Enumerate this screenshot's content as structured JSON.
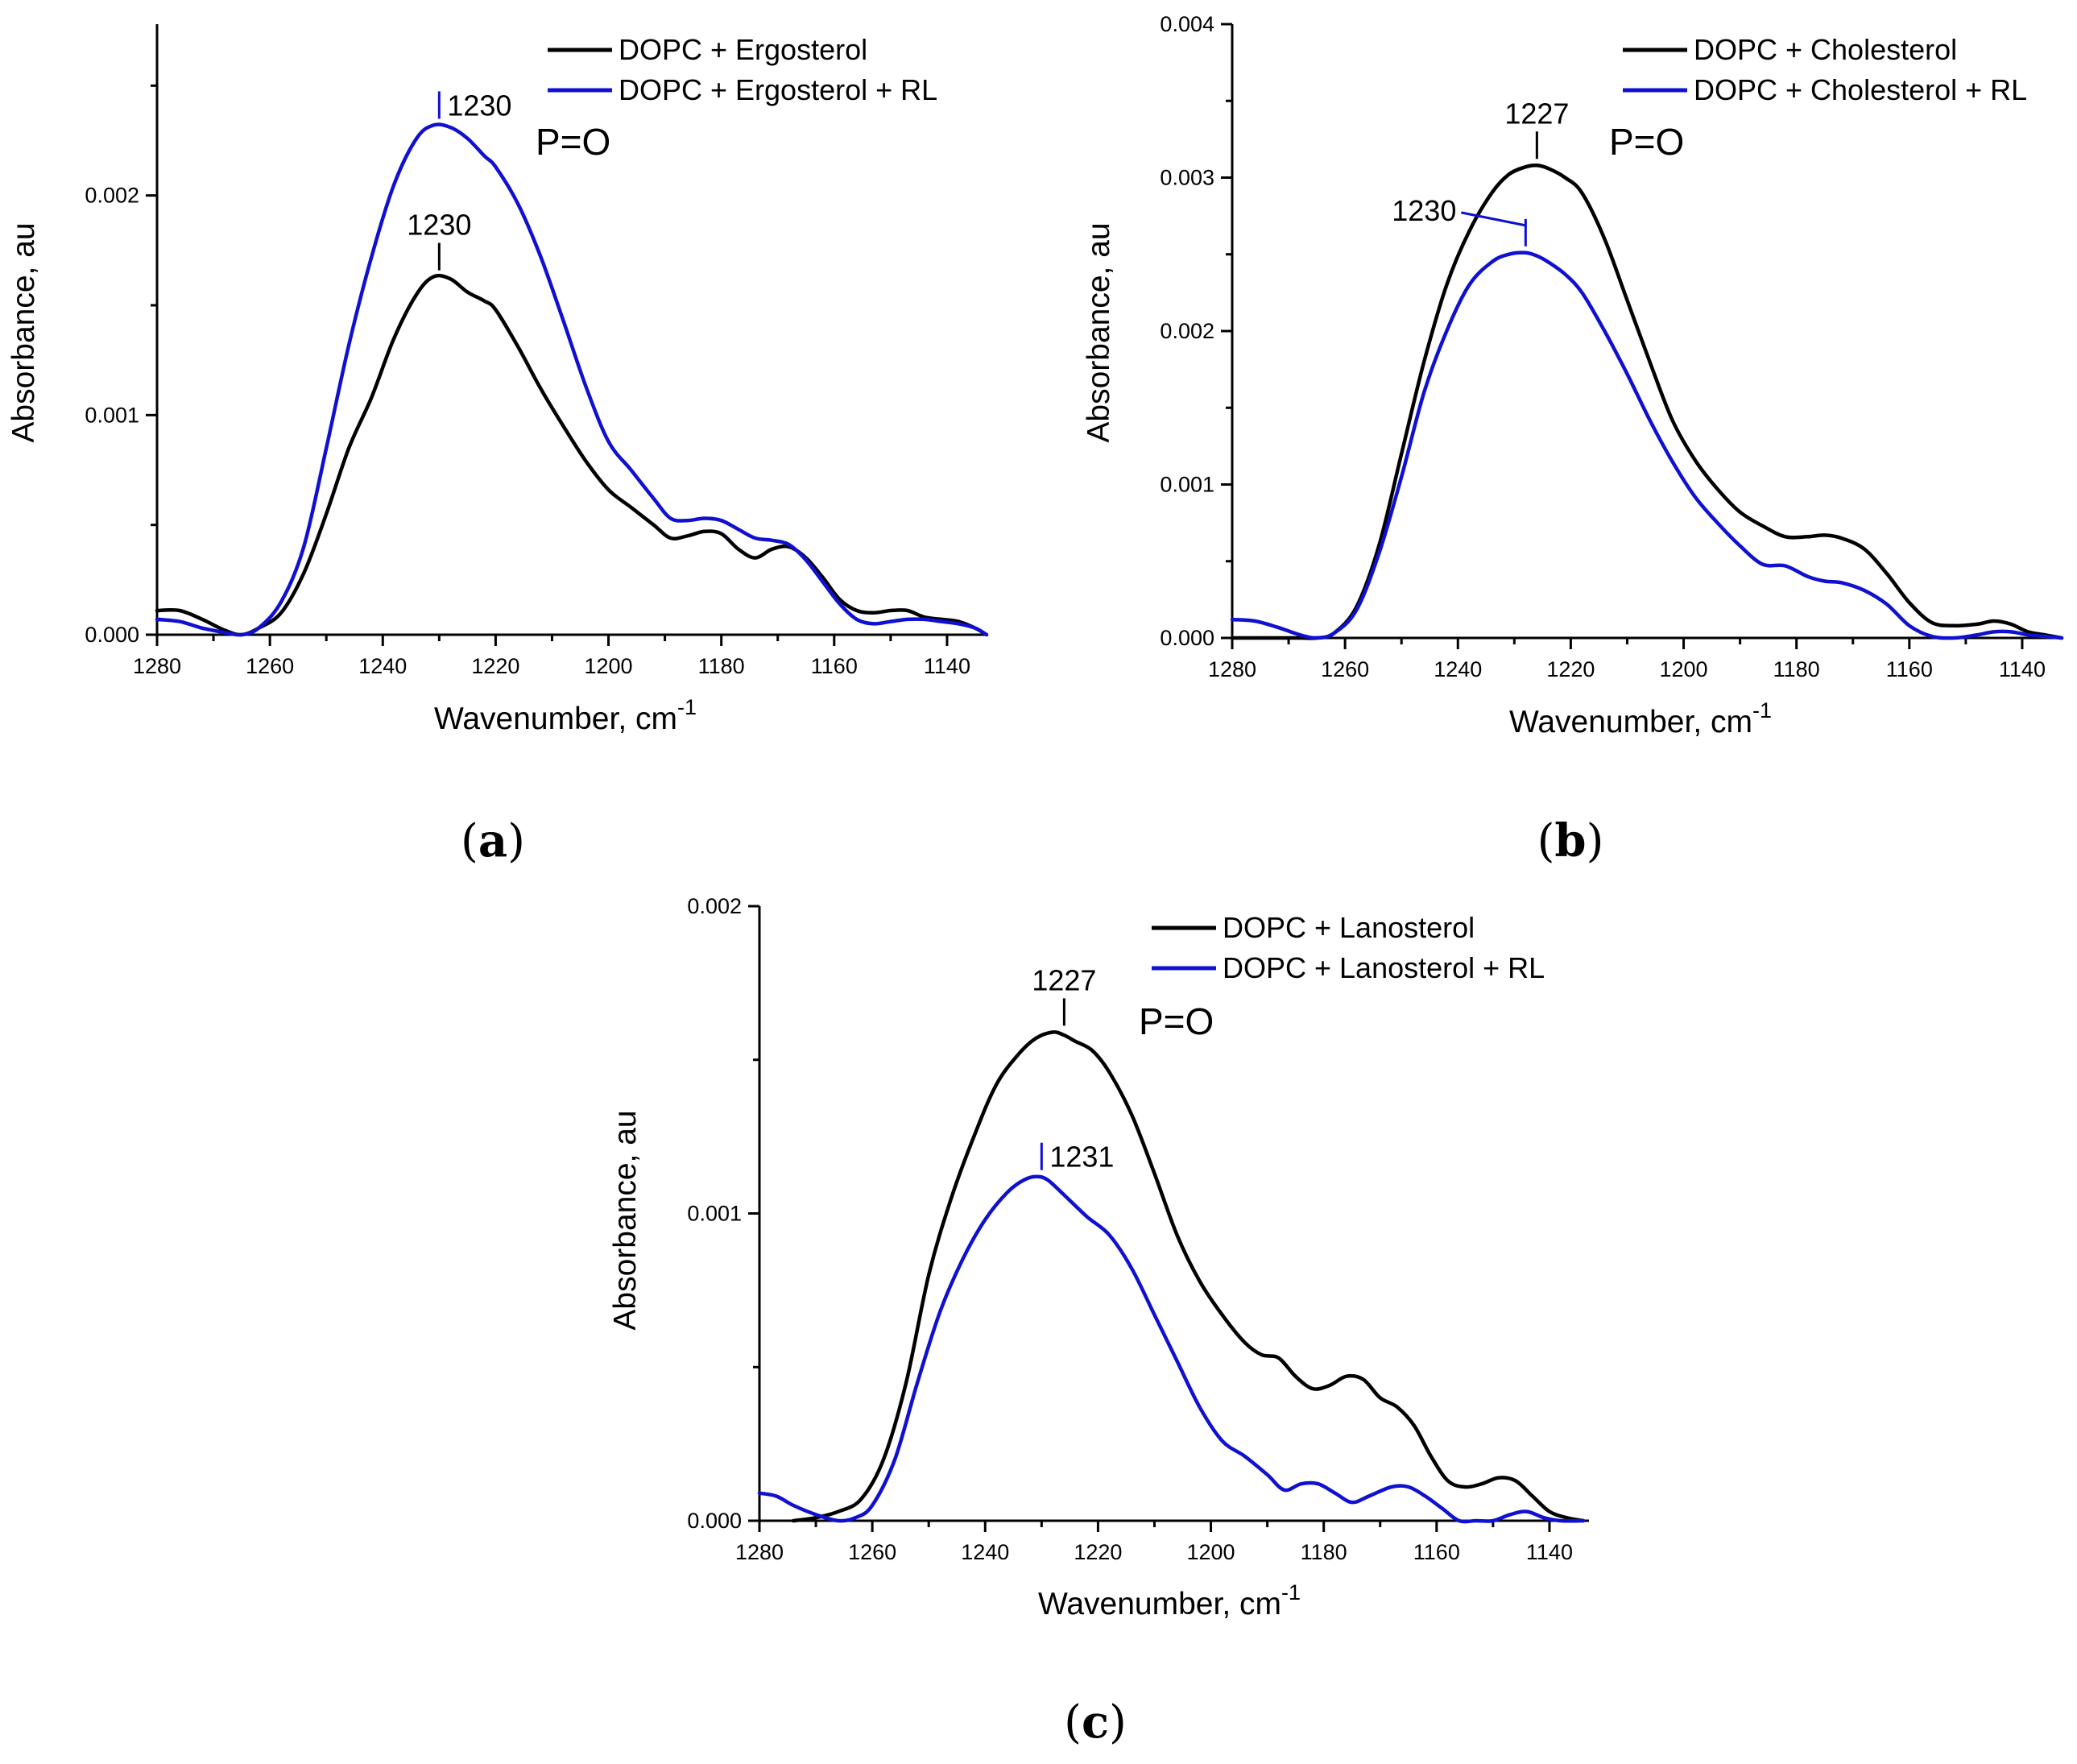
{
  "colors": {
    "black_series": "#000000",
    "blue_series": "#1010d0"
  },
  "chart_data": [
    {
      "type": "line",
      "panel_label": "a",
      "xlabel": "Wavenumber, cm",
      "xlabel_sup": "-1",
      "ylabel": "Absorbance, au",
      "xlim": [
        1280,
        1133
      ],
      "ylim": [
        0,
        0.00278
      ],
      "x_ticks": [
        1280,
        1260,
        1240,
        1220,
        1200,
        1180,
        1160,
        1140
      ],
      "x_tick_labels": [
        "1280",
        "1260",
        "1240",
        "1220",
        "1200",
        "1180",
        "1160",
        "1140"
      ],
      "y_ticks": [
        0,
        0.001,
        0.002
      ],
      "y_tick_labels": [
        "0.000",
        "0.001",
        "0.002"
      ],
      "y_minor_ticks": [
        0.0005,
        0.0015,
        0.0025
      ],
      "group_label": "P=O",
      "series": [
        {
          "name": "DOPC + Ergosterol",
          "color": "#000000",
          "x": [
            1280,
            1276,
            1272,
            1268,
            1265,
            1262,
            1258,
            1254,
            1250,
            1246,
            1242,
            1238,
            1234,
            1231,
            1228,
            1225,
            1222,
            1220,
            1216,
            1212,
            1208,
            1204,
            1200,
            1196,
            1192,
            1189,
            1186,
            1183,
            1180,
            1177,
            1174,
            1171,
            1168,
            1165,
            1162,
            1159,
            1156,
            1153,
            1150,
            1147,
            1144,
            1141,
            1138,
            1135,
            1133
          ],
          "y": [
            0.00011,
            0.00011,
            7e-05,
            2e-05,
            0.0,
            3e-05,
            0.0001,
            0.00028,
            0.00055,
            0.00085,
            0.00108,
            0.00135,
            0.00155,
            0.00163,
            0.00162,
            0.00156,
            0.00152,
            0.00148,
            0.00131,
            0.00112,
            0.00095,
            0.00079,
            0.00066,
            0.00058,
            0.0005,
            0.00044,
            0.00045,
            0.00047,
            0.00046,
            0.00039,
            0.00035,
            0.00039,
            0.0004,
            0.00035,
            0.00026,
            0.00016,
            0.00011,
            0.0001,
            0.00011,
            0.00011,
            8e-05,
            7e-05,
            6e-05,
            3e-05,
            0.0
          ],
          "annotation": "1230",
          "annotation_x": 1230
        },
        {
          "name": "DOPC + Ergosterol + RL",
          "color": "#1010d0",
          "x": [
            1280,
            1276,
            1272,
            1268,
            1265,
            1262,
            1258,
            1254,
            1250,
            1246,
            1242,
            1238,
            1234,
            1231,
            1228,
            1225,
            1222,
            1220,
            1216,
            1212,
            1208,
            1204,
            1200,
            1196,
            1192,
            1189,
            1186,
            1183,
            1180,
            1177,
            1174,
            1171,
            1168,
            1165,
            1162,
            1159,
            1156,
            1153,
            1150,
            1147,
            1144,
            1141,
            1138,
            1135,
            1133
          ],
          "y": [
            7e-05,
            6e-05,
            3e-05,
            1e-05,
            0.0,
            3e-05,
            0.00015,
            0.0004,
            0.00085,
            0.00132,
            0.00172,
            0.00205,
            0.00226,
            0.00232,
            0.00231,
            0.00226,
            0.00218,
            0.00213,
            0.00196,
            0.00172,
            0.00143,
            0.00113,
            0.00088,
            0.00075,
            0.00062,
            0.00053,
            0.00052,
            0.00053,
            0.00052,
            0.00048,
            0.00044,
            0.00043,
            0.00041,
            0.00034,
            0.00024,
            0.00014,
            7e-05,
            5e-05,
            6e-05,
            7e-05,
            7e-05,
            6e-05,
            5e-05,
            3e-05,
            0.0
          ],
          "annotation": "1230",
          "annotation_x": 1230
        }
      ]
    },
    {
      "type": "line",
      "panel_label": "b",
      "xlabel": "Wavenumber, cm",
      "xlabel_sup": "-1",
      "ylabel": "Absorbance, au",
      "xlim": [
        1280,
        1133
      ],
      "ylim": [
        0,
        0.004
      ],
      "x_ticks": [
        1280,
        1260,
        1240,
        1220,
        1200,
        1180,
        1160,
        1140
      ],
      "x_tick_labels": [
        "1280",
        "1260",
        "1240",
        "1220",
        "1200",
        "1180",
        "1160",
        "1140"
      ],
      "y_ticks": [
        0,
        0.001,
        0.002,
        0.003,
        0.004
      ],
      "y_tick_labels": [
        "0.000",
        "0.001",
        "0.002",
        "0.003",
        "0.004"
      ],
      "y_minor_ticks": [
        0.0005,
        0.0015,
        0.0025,
        0.0035
      ],
      "group_label": "P=O",
      "series": [
        {
          "name": "DOPC + Cholesterol",
          "color": "#000000",
          "x": [
            1280,
            1276,
            1272,
            1268,
            1265,
            1262,
            1258,
            1254,
            1250,
            1246,
            1242,
            1238,
            1234,
            1231,
            1228,
            1226,
            1224,
            1221,
            1218,
            1214,
            1210,
            1206,
            1202,
            1198,
            1194,
            1190,
            1186,
            1182,
            1178,
            1175,
            1172,
            1168,
            1164,
            1160,
            1156,
            1152,
            1148,
            1145,
            1142,
            1139,
            1136,
            1133
          ],
          "y": [
            0.0,
            0.0,
            0.0,
            0.0,
            0.0,
            3e-05,
            0.0002,
            0.0006,
            0.0012,
            0.0018,
            0.0023,
            0.00265,
            0.0029,
            0.00302,
            0.00307,
            0.00308,
            0.00306,
            0.003,
            0.0029,
            0.0026,
            0.0022,
            0.0018,
            0.00142,
            0.00116,
            0.00097,
            0.00082,
            0.00073,
            0.00066,
            0.00066,
            0.00067,
            0.00065,
            0.00058,
            0.00042,
            0.00023,
            0.0001,
            8e-05,
            9e-05,
            0.00011,
            9e-05,
            4e-05,
            2e-05,
            0.0
          ],
          "annotation": "1227",
          "annotation_x": 1226
        },
        {
          "name": "DOPC + Cholesterol + RL",
          "color": "#1010d0",
          "x": [
            1280,
            1276,
            1272,
            1268,
            1265,
            1262,
            1258,
            1254,
            1250,
            1246,
            1242,
            1238,
            1234,
            1231,
            1228,
            1226,
            1224,
            1221,
            1218,
            1214,
            1210,
            1206,
            1202,
            1198,
            1194,
            1190,
            1186,
            1182,
            1178,
            1175,
            1172,
            1168,
            1164,
            1160,
            1156,
            1152,
            1148,
            1145,
            1142,
            1139,
            1136,
            1133
          ],
          "y": [
            0.00012,
            0.00011,
            7e-05,
            2e-05,
            0.0,
            3e-05,
            0.00018,
            0.00055,
            0.00105,
            0.0016,
            0.002,
            0.0023,
            0.00245,
            0.0025,
            0.00251,
            0.00249,
            0.00245,
            0.00237,
            0.00225,
            0.002,
            0.00172,
            0.00142,
            0.00115,
            0.00092,
            0.00075,
            0.0006,
            0.00048,
            0.00047,
            0.0004,
            0.00037,
            0.00036,
            0.00031,
            0.00022,
            8e-05,
            1e-05,
            0.0,
            2e-05,
            4e-05,
            4e-05,
            2e-05,
            1e-05,
            0.0
          ],
          "annotation": "1230",
          "annotation_x": 1228
        }
      ]
    },
    {
      "type": "line",
      "panel_label": "c",
      "xlabel": "Wavenumber, cm",
      "xlabel_sup": "-1",
      "ylabel": "Absorbance, au",
      "xlim": [
        1280,
        1133
      ],
      "ylim": [
        0,
        0.002
      ],
      "x_ticks": [
        1280,
        1260,
        1240,
        1220,
        1200,
        1180,
        1160,
        1140
      ],
      "x_tick_labels": [
        "1280",
        "1260",
        "1240",
        "1220",
        "1200",
        "1180",
        "1160",
        "1140"
      ],
      "y_ticks": [
        0,
        0.001,
        0.002
      ],
      "y_tick_labels": [
        "0.000",
        "0.001",
        "0.002"
      ],
      "y_minor_ticks": [
        0.0005,
        0.0015
      ],
      "group_label": "P=O",
      "series": [
        {
          "name": "DOPC + Lanosterol",
          "color": "#000000",
          "x": [
            1274,
            1270,
            1266,
            1262,
            1258,
            1254,
            1250,
            1246,
            1242,
            1238,
            1234,
            1231,
            1228,
            1226,
            1224,
            1221,
            1218,
            1214,
            1210,
            1206,
            1202,
            1198,
            1194,
            1191,
            1188,
            1185,
            1182,
            1179,
            1176,
            1173,
            1170,
            1167,
            1164,
            1161,
            1158,
            1155,
            1152,
            1149,
            1146,
            1143,
            1140,
            1137,
            1134
          ],
          "y": [
            0.0,
            1e-05,
            3e-05,
            7e-05,
            0.0002,
            0.00045,
            0.0008,
            0.00105,
            0.00125,
            0.00142,
            0.00152,
            0.00157,
            0.00159,
            0.00158,
            0.00156,
            0.00153,
            0.00146,
            0.00132,
            0.00113,
            0.00093,
            0.00078,
            0.00067,
            0.00058,
            0.00054,
            0.00053,
            0.00047,
            0.00043,
            0.00044,
            0.00047,
            0.00046,
            0.0004,
            0.00037,
            0.00031,
            0.00021,
            0.00013,
            0.00011,
            0.00012,
            0.00014,
            0.00013,
            8e-05,
            3e-05,
            1e-05,
            0.0
          ],
          "annotation": "1227",
          "annotation_x": 1226
        },
        {
          "name": "DOPC + Lanosterol + RL",
          "color": "#1010d0",
          "x": [
            1280,
            1277,
            1274,
            1270,
            1266,
            1263,
            1260,
            1256,
            1252,
            1248,
            1244,
            1240,
            1236,
            1233,
            1231,
            1229,
            1226,
            1222,
            1218,
            1214,
            1210,
            1206,
            1202,
            1198,
            1194,
            1190,
            1187,
            1184,
            1181,
            1178,
            1175,
            1172,
            1168,
            1165,
            1162,
            1159,
            1156,
            1153,
            1150,
            1147,
            1144,
            1141,
            1138,
            1134
          ],
          "y": [
            9e-05,
            8e-05,
            5e-05,
            2e-05,
            0.0,
            1e-05,
            5e-05,
            0.0002,
            0.00045,
            0.00068,
            0.00085,
            0.00098,
            0.00107,
            0.00111,
            0.00112,
            0.00111,
            0.00106,
            0.00099,
            0.00093,
            0.00082,
            0.00067,
            0.00052,
            0.00037,
            0.00026,
            0.00021,
            0.00015,
            0.0001,
            0.00012,
            0.00012,
            9e-05,
            6e-05,
            8e-05,
            0.00011,
            0.00011,
            8e-05,
            4e-05,
            0.0,
            0.0,
            0.0,
            2e-05,
            3e-05,
            1e-05,
            0.0,
            0.0
          ],
          "annotation": "1231",
          "annotation_x": 1230
        }
      ]
    }
  ]
}
